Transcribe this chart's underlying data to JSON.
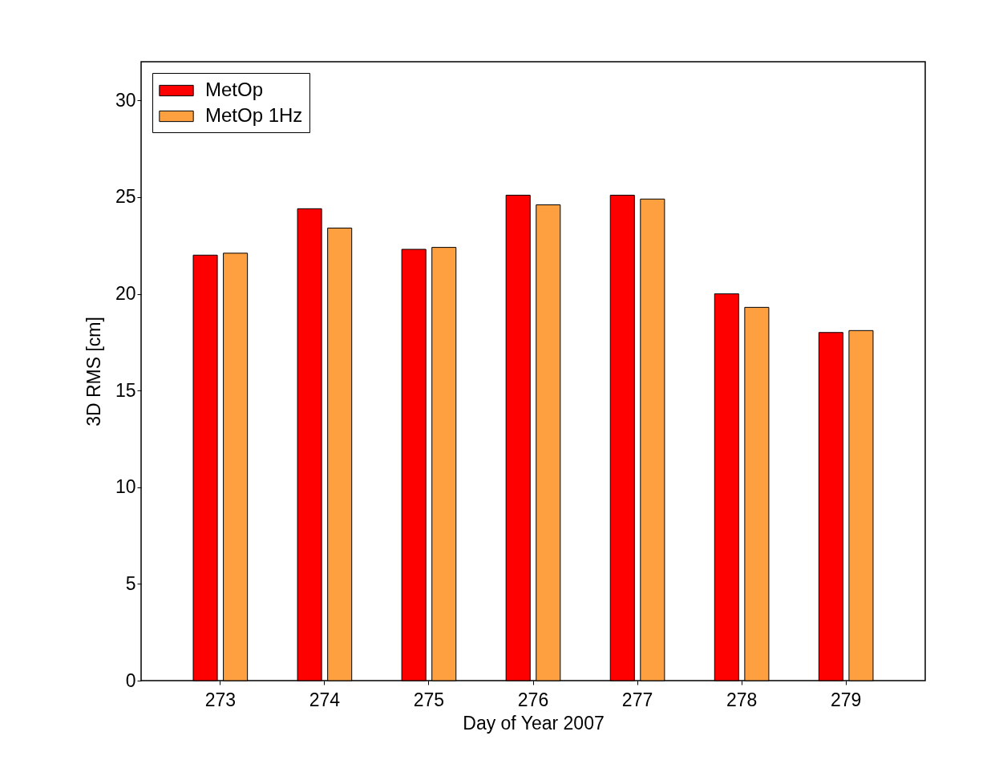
{
  "chart_data": {
    "type": "bar",
    "xlabel": "Day of Year 2007",
    "ylabel": "3D RMS [cm]",
    "categories": [
      "273",
      "274",
      "275",
      "276",
      "277",
      "278",
      "279"
    ],
    "series": [
      {
        "name": "MetOp",
        "color": "#ff0000",
        "values": [
          22.0,
          24.4,
          22.3,
          25.1,
          25.1,
          20.0,
          18.0
        ]
      },
      {
        "name": "MetOp 1Hz",
        "color": "#ffa040",
        "values": [
          22.1,
          23.4,
          22.4,
          24.6,
          24.9,
          19.3,
          18.1
        ]
      }
    ],
    "ylim": [
      0,
      32
    ],
    "yticks": [
      0,
      5,
      10,
      15,
      20,
      25,
      30
    ],
    "grid": false,
    "legend": "top left"
  }
}
